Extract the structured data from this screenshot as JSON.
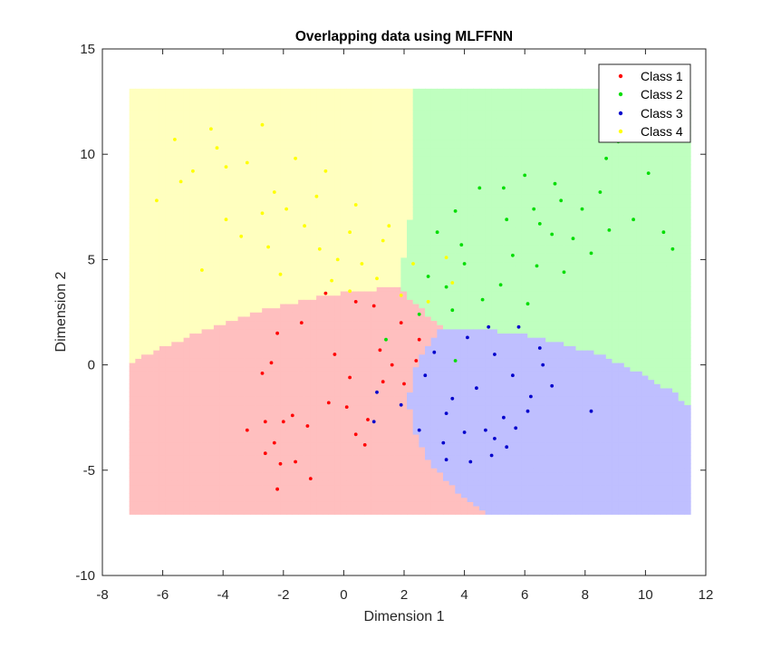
{
  "chart_data": {
    "type": "scatter",
    "title": "Overlapping data using MLFFNN",
    "xlabel": "Dimension 1",
    "ylabel": "Dimension 2",
    "xlim": [
      -8,
      12
    ],
    "ylim": [
      -10,
      15
    ],
    "xticks": [
      -8,
      -6,
      -4,
      -2,
      0,
      2,
      4,
      6,
      8,
      10,
      12
    ],
    "yticks": [
      -10,
      -5,
      0,
      5,
      10,
      15
    ],
    "xtick_labels": [
      "-8",
      "-6",
      "-4",
      "-2",
      "0",
      "2",
      "4",
      "6",
      "8",
      "10",
      "12"
    ],
    "ytick_labels": [
      "-10",
      "-5",
      "0",
      "5",
      "10",
      "15"
    ],
    "grid": false,
    "legend_position": "top-right",
    "decision_grid_range": {
      "x": [
        -7,
        11.5
      ],
      "y": [
        -7,
        13
      ]
    },
    "series": [
      {
        "name": "Class 1",
        "color": "#ff0000",
        "region_color": "#ffbfbf",
        "center": [
          0,
          0
        ],
        "spread": [
          1.3,
          1.7
        ],
        "points": [
          [
            -2.6,
            -2.7
          ],
          [
            -2.0,
            -2.7
          ],
          [
            -1.7,
            -2.4
          ],
          [
            -2.2,
            -5.9
          ],
          [
            -1.1,
            -5.4
          ],
          [
            -2.6,
            -4.2
          ],
          [
            -2.3,
            -3.7
          ],
          [
            -3.2,
            -3.1
          ],
          [
            -2.1,
            -4.7
          ],
          [
            -1.6,
            -4.6
          ],
          [
            0.4,
            -3.3
          ],
          [
            0.8,
            -2.6
          ],
          [
            0.7,
            -3.8
          ],
          [
            -0.5,
            -1.8
          ],
          [
            -1.2,
            -2.9
          ],
          [
            0.1,
            -2.0
          ],
          [
            1.3,
            -0.8
          ],
          [
            1.6,
            0.0
          ],
          [
            1.2,
            0.7
          ],
          [
            -2.4,
            0.1
          ],
          [
            -2.7,
            -0.4
          ],
          [
            -2.2,
            1.5
          ],
          [
            -1.4,
            2.0
          ],
          [
            -0.6,
            3.4
          ],
          [
            0.4,
            3.0
          ],
          [
            1.0,
            2.8
          ],
          [
            1.9,
            2.0
          ],
          [
            2.5,
            1.2
          ],
          [
            2.4,
            0.2
          ],
          [
            2.0,
            -0.9
          ],
          [
            -0.3,
            0.5
          ],
          [
            0.2,
            -0.6
          ]
        ]
      },
      {
        "name": "Class 2",
        "color": "#00dd00",
        "region_color": "#bfffbf",
        "center": [
          5.5,
          5.5
        ],
        "spread": [
          1.6,
          1.6
        ],
        "points": [
          [
            4.5,
            8.4
          ],
          [
            5.3,
            8.4
          ],
          [
            6.0,
            9.0
          ],
          [
            8.7,
            9.8
          ],
          [
            9.1,
            10.6
          ],
          [
            10.1,
            9.1
          ],
          [
            10.6,
            6.3
          ],
          [
            10.9,
            5.5
          ],
          [
            8.5,
            8.2
          ],
          [
            7.9,
            7.4
          ],
          [
            7.2,
            7.8
          ],
          [
            6.5,
            6.7
          ],
          [
            3.7,
            7.3
          ],
          [
            3.1,
            6.3
          ],
          [
            3.9,
            5.7
          ],
          [
            5.4,
            6.9
          ],
          [
            6.4,
            4.7
          ],
          [
            7.3,
            4.4
          ],
          [
            8.2,
            5.3
          ],
          [
            5.2,
            3.8
          ],
          [
            6.1,
            2.9
          ],
          [
            4.6,
            3.1
          ],
          [
            3.6,
            2.6
          ],
          [
            4.0,
            4.8
          ],
          [
            6.9,
            6.2
          ],
          [
            7.6,
            6.0
          ],
          [
            2.8,
            4.2
          ],
          [
            3.4,
            3.7
          ],
          [
            1.4,
            1.2
          ],
          [
            3.7,
            0.2
          ],
          [
            2.5,
            2.4
          ],
          [
            5.6,
            5.2
          ],
          [
            8.8,
            6.4
          ],
          [
            9.6,
            6.9
          ],
          [
            7.0,
            8.6
          ],
          [
            6.3,
            7.4
          ]
        ]
      },
      {
        "name": "Class 3",
        "color": "#0000cc",
        "region_color": "#bfbfff",
        "center": [
          4.4,
          -1.0
        ],
        "spread": [
          1.2,
          1.1
        ],
        "points": [
          [
            4.2,
            -4.6
          ],
          [
            3.4,
            -4.5
          ],
          [
            4.9,
            -4.3
          ],
          [
            5.0,
            -3.5
          ],
          [
            5.4,
            -3.9
          ],
          [
            8.2,
            -2.2
          ],
          [
            6.9,
            -1.0
          ],
          [
            6.6,
            0.0
          ],
          [
            6.5,
            0.8
          ],
          [
            5.8,
            1.8
          ],
          [
            4.8,
            1.8
          ],
          [
            4.1,
            1.3
          ],
          [
            3.0,
            0.6
          ],
          [
            2.7,
            -0.5
          ],
          [
            1.1,
            -1.3
          ],
          [
            1.0,
            -2.7
          ],
          [
            1.9,
            -1.9
          ],
          [
            2.5,
            -3.1
          ],
          [
            3.4,
            -2.3
          ],
          [
            5.7,
            -3.0
          ],
          [
            6.2,
            -1.5
          ],
          [
            5.3,
            -2.5
          ],
          [
            4.0,
            -3.2
          ],
          [
            3.6,
            -1.6
          ],
          [
            5.0,
            0.5
          ],
          [
            5.6,
            -0.5
          ],
          [
            6.1,
            -2.2
          ],
          [
            3.3,
            -3.7
          ],
          [
            4.7,
            -3.1
          ],
          [
            4.4,
            -1.1
          ]
        ]
      },
      {
        "name": "Class 4",
        "color": "#ffff00",
        "region_color": "#ffffbf",
        "center": [
          -1.3,
          6.2
        ],
        "spread": [
          1.6,
          1.5
        ],
        "points": [
          [
            -2.7,
            11.4
          ],
          [
            -4.4,
            11.2
          ],
          [
            -5.6,
            10.7
          ],
          [
            -4.2,
            10.3
          ],
          [
            -3.9,
            9.4
          ],
          [
            -5.0,
            9.2
          ],
          [
            -5.4,
            8.7
          ],
          [
            -3.2,
            9.6
          ],
          [
            -2.3,
            8.2
          ],
          [
            -1.9,
            7.4
          ],
          [
            -1.3,
            6.6
          ],
          [
            -6.2,
            7.8
          ],
          [
            -4.7,
            4.5
          ],
          [
            -3.4,
            6.1
          ],
          [
            -2.5,
            5.6
          ],
          [
            -0.9,
            8.0
          ],
          [
            0.4,
            7.6
          ],
          [
            -1.6,
            9.8
          ],
          [
            -0.6,
            9.2
          ],
          [
            0.2,
            6.3
          ],
          [
            1.3,
            5.9
          ],
          [
            0.6,
            4.8
          ],
          [
            1.1,
            4.1
          ],
          [
            1.9,
            3.3
          ],
          [
            2.3,
            4.8
          ],
          [
            -0.4,
            4.0
          ],
          [
            -0.8,
            5.5
          ],
          [
            -2.1,
            4.3
          ],
          [
            0.2,
            3.5
          ],
          [
            1.5,
            6.6
          ],
          [
            3.4,
            5.1
          ],
          [
            2.8,
            3.0
          ],
          [
            3.6,
            3.9
          ],
          [
            -2.7,
            7.2
          ],
          [
            -3.9,
            6.9
          ],
          [
            -0.2,
            5.0
          ]
        ]
      }
    ]
  }
}
